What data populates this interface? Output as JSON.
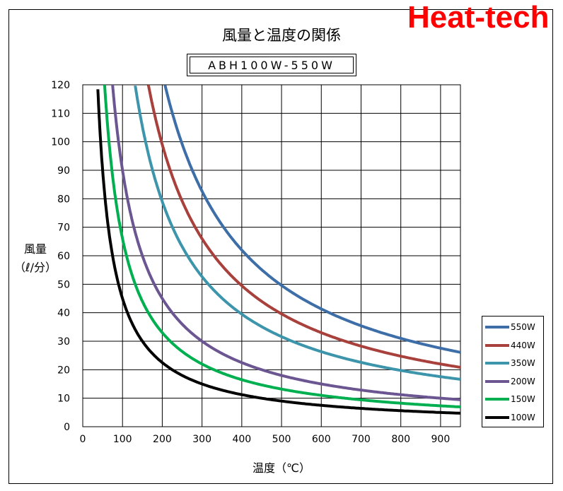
{
  "brand": "Heat-tech",
  "chart_data": {
    "type": "line",
    "title": "風量と温度の関係",
    "subtitle": "ABH100W-550W",
    "xlabel": "温度（℃）",
    "ylabel_line1": "風量",
    "ylabel_line2": "（ℓ/分）",
    "xlim": [
      0,
      950
    ],
    "ylim": [
      0,
      120
    ],
    "xticks": [
      0,
      100,
      200,
      300,
      400,
      500,
      600,
      700,
      800,
      900
    ],
    "yticks": [
      0,
      10,
      20,
      30,
      40,
      50,
      60,
      70,
      80,
      90,
      100,
      110,
      120
    ],
    "grid": true,
    "legend_position": "right",
    "series": [
      {
        "name": "550W",
        "color": "#3d6ea8",
        "k": 24800,
        "x_start": 207
      },
      {
        "name": "440W",
        "color": "#a8413c",
        "k": 19800,
        "x_start": 165
      },
      {
        "name": "350W",
        "color": "#3d95ac",
        "k": 15800,
        "x_start": 132
      },
      {
        "name": "200W",
        "color": "#6b5692",
        "k": 9000,
        "x_start": 75
      },
      {
        "name": "150W",
        "color": "#00b050",
        "k": 6600,
        "x_start": 55
      },
      {
        "name": "100W",
        "color": "#000000",
        "k": 4500,
        "x_start": 38
      }
    ]
  }
}
